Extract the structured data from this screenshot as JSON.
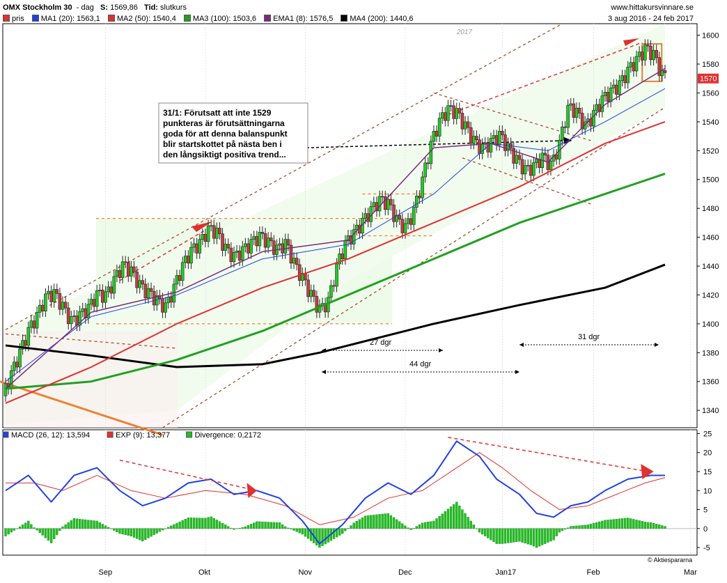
{
  "header": {
    "title": "OMX Stockholm 30",
    "period": "dag",
    "s_label": "S:",
    "s_value": "1569,86",
    "tid_label": "Tid:",
    "tid_value": "slutkurs",
    "site": "www.hittakursvinnare.se",
    "daterange": "3 aug 2016 - 24 feb 2017"
  },
  "legend": [
    {
      "label": "pris",
      "color": "#e03030"
    },
    {
      "label": "MA1 (20): 1563,1",
      "color": "#2040e0"
    },
    {
      "label": "MA2 (50): 1540,4",
      "color": "#e03030"
    },
    {
      "label": "MA3 (100): 1503,6",
      "color": "#20a020"
    },
    {
      "label": "EMA1 (8): 1576,5",
      "color": "#7a2a7a"
    },
    {
      "label": "MA4 (200): 1440,6",
      "color": "#000000"
    }
  ],
  "macd_legend": [
    {
      "label": "MACD (26, 12): 13,594",
      "color": "#2040e0"
    },
    {
      "label": "EXP (9): 13,377",
      "color": "#e03030"
    },
    {
      "label": "Divergence: 0,2172",
      "color": "#20c020"
    }
  ],
  "annotations": {
    "note": [
      "31/1: Förutsatt att inte 1529",
      "punkteras är förutsättningarna",
      "goda för att denna balanspunkt",
      "blir startskottet på nästa ben i",
      "den långsiktigt positiva trend..."
    ],
    "year": "2017",
    "d27": "27 dgr",
    "d44": "44 dgr",
    "d31": "31 dgr",
    "price_tag": "1570",
    "copyright": "© Aktiespararna"
  },
  "chart_data": [
    {
      "type": "candlestick",
      "title": "OMX Stockholm 30",
      "ylim": [
        1328,
        1608
      ],
      "yticks": [
        1340,
        1360,
        1380,
        1400,
        1420,
        1440,
        1460,
        1480,
        1500,
        1520,
        1540,
        1560,
        1580,
        1600
      ],
      "xticks": [
        "Sep",
        "Okt",
        "Nov",
        "Dec",
        "Jan17",
        "Feb",
        "Mar"
      ],
      "price_close_points": [
        [
          0,
          1350
        ],
        [
          3,
          1365
        ],
        [
          6,
          1380
        ],
        [
          9,
          1395
        ],
        [
          12,
          1405
        ],
        [
          15,
          1418
        ],
        [
          18,
          1420
        ],
        [
          21,
          1410
        ],
        [
          24,
          1400
        ],
        [
          27,
          1405
        ],
        [
          30,
          1410
        ],
        [
          33,
          1420
        ],
        [
          36,
          1418
        ],
        [
          39,
          1430
        ],
        [
          42,
          1440
        ],
        [
          45,
          1435
        ],
        [
          48,
          1425
        ],
        [
          51,
          1420
        ],
        [
          54,
          1415
        ],
        [
          57,
          1410
        ],
        [
          60,
          1425
        ],
        [
          63,
          1440
        ],
        [
          66,
          1450
        ],
        [
          69,
          1455
        ],
        [
          72,
          1465
        ],
        [
          75,
          1462
        ],
        [
          78,
          1450
        ],
        [
          81,
          1445
        ],
        [
          84,
          1450
        ],
        [
          87,
          1455
        ],
        [
          90,
          1460
        ],
        [
          93,
          1455
        ],
        [
          96,
          1450
        ],
        [
          99,
          1455
        ],
        [
          102,
          1440
        ],
        [
          105,
          1430
        ],
        [
          108,
          1418
        ],
        [
          111,
          1408
        ],
        [
          114,
          1415
        ],
        [
          117,
          1440
        ],
        [
          120,
          1455
        ],
        [
          123,
          1462
        ],
        [
          126,
          1470
        ],
        [
          129,
          1478
        ],
        [
          132,
          1485
        ],
        [
          135,
          1482
        ],
        [
          138,
          1470
        ],
        [
          141,
          1465
        ],
        [
          144,
          1478
        ],
        [
          147,
          1500
        ],
        [
          150,
          1525
        ],
        [
          153,
          1540
        ],
        [
          156,
          1548
        ],
        [
          159,
          1545
        ],
        [
          162,
          1535
        ],
        [
          165,
          1525
        ],
        [
          168,
          1520
        ],
        [
          171,
          1525
        ],
        [
          174,
          1530
        ],
        [
          177,
          1520
        ],
        [
          180,
          1512
        ],
        [
          183,
          1505
        ],
        [
          186,
          1508
        ],
        [
          189,
          1515
        ],
        [
          192,
          1508
        ],
        [
          195,
          1525
        ],
        [
          198,
          1550
        ],
        [
          201,
          1545
        ],
        [
          204,
          1535
        ],
        [
          207,
          1545
        ],
        [
          210,
          1555
        ],
        [
          213,
          1560
        ],
        [
          216,
          1565
        ],
        [
          219,
          1575
        ],
        [
          222,
          1582
        ],
        [
          225,
          1590
        ],
        [
          228,
          1585
        ],
        [
          231,
          1570
        ]
      ],
      "ma20": [
        [
          0,
          1360
        ],
        [
          30,
          1405
        ],
        [
          60,
          1420
        ],
        [
          90,
          1445
        ],
        [
          120,
          1455
        ],
        [
          150,
          1490
        ],
        [
          170,
          1525
        ],
        [
          190,
          1520
        ],
        [
          210,
          1540
        ],
        [
          231,
          1563
        ]
      ],
      "ma50": [
        [
          0,
          1345
        ],
        [
          30,
          1370
        ],
        [
          60,
          1400
        ],
        [
          90,
          1425
        ],
        [
          120,
          1445
        ],
        [
          150,
          1470
        ],
        [
          180,
          1495
        ],
        [
          210,
          1525
        ],
        [
          231,
          1540
        ]
      ],
      "ma100": [
        [
          0,
          1355
        ],
        [
          30,
          1360
        ],
        [
          60,
          1375
        ],
        [
          90,
          1395
        ],
        [
          120,
          1420
        ],
        [
          150,
          1445
        ],
        [
          180,
          1470
        ],
        [
          210,
          1490
        ],
        [
          231,
          1504
        ]
      ],
      "ma200": [
        [
          0,
          1385
        ],
        [
          30,
          1378
        ],
        [
          60,
          1370
        ],
        [
          90,
          1372
        ],
        [
          110,
          1380
        ],
        [
          150,
          1400
        ],
        [
          180,
          1413
        ],
        [
          210,
          1425
        ],
        [
          231,
          1441
        ]
      ],
      "ema8": [
        [
          0,
          1355
        ],
        [
          30,
          1408
        ],
        [
          60,
          1422
        ],
        [
          90,
          1450
        ],
        [
          120,
          1458
        ],
        [
          150,
          1522
        ],
        [
          170,
          1525
        ],
        [
          190,
          1512
        ],
        [
          210,
          1552
        ],
        [
          231,
          1577
        ]
      ]
    },
    {
      "type": "macd",
      "ylim": [
        -7,
        26
      ],
      "yticks": [
        -5,
        0,
        5,
        10,
        15,
        20,
        25
      ],
      "macd": [
        [
          0,
          10
        ],
        [
          8,
          14
        ],
        [
          16,
          7
        ],
        [
          24,
          14
        ],
        [
          32,
          16
        ],
        [
          40,
          10
        ],
        [
          48,
          6
        ],
        [
          56,
          8
        ],
        [
          64,
          12
        ],
        [
          72,
          13
        ],
        [
          80,
          9
        ],
        [
          88,
          10
        ],
        [
          96,
          8
        ],
        [
          104,
          2
        ],
        [
          110,
          -4
        ],
        [
          118,
          1
        ],
        [
          126,
          8
        ],
        [
          134,
          12
        ],
        [
          142,
          9
        ],
        [
          150,
          14
        ],
        [
          158,
          23
        ],
        [
          166,
          19
        ],
        [
          172,
          13
        ],
        [
          180,
          9
        ],
        [
          186,
          4
        ],
        [
          192,
          3
        ],
        [
          198,
          6
        ],
        [
          204,
          7
        ],
        [
          210,
          10
        ],
        [
          218,
          13
        ],
        [
          226,
          14
        ],
        [
          231,
          14
        ]
      ],
      "signal": [
        [
          0,
          12
        ],
        [
          10,
          12
        ],
        [
          20,
          10
        ],
        [
          32,
          14
        ],
        [
          44,
          10
        ],
        [
          56,
          8
        ],
        [
          70,
          10
        ],
        [
          84,
          9
        ],
        [
          98,
          6
        ],
        [
          110,
          1
        ],
        [
          122,
          3
        ],
        [
          134,
          8
        ],
        [
          146,
          10
        ],
        [
          158,
          16
        ],
        [
          166,
          20
        ],
        [
          174,
          16
        ],
        [
          184,
          10
        ],
        [
          194,
          5
        ],
        [
          204,
          6
        ],
        [
          214,
          9
        ],
        [
          224,
          12
        ],
        [
          231,
          13.4
        ]
      ]
    }
  ]
}
